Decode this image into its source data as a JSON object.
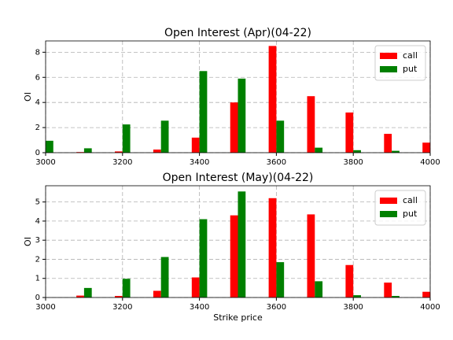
{
  "chart_data": [
    {
      "type": "bar",
      "title": "Open Interest (Apr)(04-22)",
      "ylabel": "OI",
      "x": [
        3000,
        3100,
        3200,
        3300,
        3400,
        3500,
        3600,
        3700,
        3800,
        3900,
        4000
      ],
      "series": [
        {
          "name": "call",
          "color": "#ff0000",
          "values": [
            0,
            0.05,
            0.1,
            0.25,
            1.2,
            4.0,
            8.5,
            4.5,
            3.2,
            1.5,
            0.8
          ]
        },
        {
          "name": "put",
          "color": "#008000",
          "values": [
            0.95,
            0.35,
            2.25,
            2.55,
            6.5,
            5.9,
            2.55,
            0.4,
            0.2,
            0.15,
            0
          ]
        }
      ],
      "xlim": [
        3000,
        4000
      ],
      "xticks": [
        3000,
        3200,
        3400,
        3600,
        3800,
        4000
      ],
      "ylim": [
        0,
        8.9
      ],
      "yticks": [
        0,
        2,
        4,
        6,
        8
      ],
      "grid": true,
      "legend": "upper right"
    },
    {
      "type": "bar",
      "title": "Open Interest (May)(04-22)",
      "ylabel": "OI",
      "xlabel": "Strike price",
      "x": [
        3000,
        3100,
        3200,
        3300,
        3400,
        3500,
        3600,
        3700,
        3800,
        3900,
        4000
      ],
      "series": [
        {
          "name": "call",
          "color": "#ff0000",
          "values": [
            0,
            0.1,
            0.08,
            0.35,
            1.05,
            4.3,
            5.2,
            4.35,
            1.7,
            0.78,
            0.3
          ]
        },
        {
          "name": "put",
          "color": "#008000",
          "values": [
            0,
            0.5,
            0.98,
            2.12,
            4.1,
            5.55,
            1.85,
            0.85,
            0.12,
            0.08,
            0
          ]
        }
      ],
      "xlim": [
        3000,
        4000
      ],
      "xticks": [
        3000,
        3200,
        3400,
        3600,
        3800,
        4000
      ],
      "ylim": [
        0,
        5.85
      ],
      "yticks": [
        0,
        1,
        2,
        3,
        4,
        5
      ],
      "grid": true,
      "legend": "upper right"
    }
  ]
}
